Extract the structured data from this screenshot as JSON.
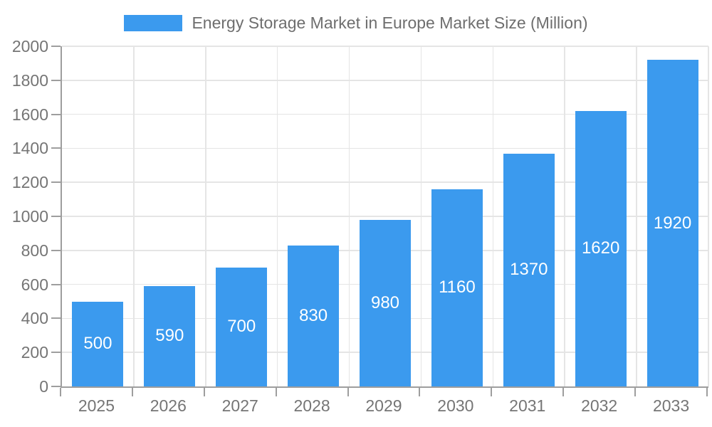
{
  "legend": {
    "items": [
      {
        "label": "Energy Storage Market in Europe Market Size (Million)",
        "swatch_color": "#3B9AEE"
      }
    ]
  },
  "colors": {
    "background": "#FFFFFF",
    "bar": "#3B9AEE",
    "grid_line": "#E5E5E5",
    "axis_line": "#9E9E9E",
    "axis_label": "#757575",
    "legend_text": "#6E6E6E",
    "value_label": "#FFFFFF"
  },
  "chart_data": {
    "type": "bar",
    "title": "Energy Storage Market in Europe Market Size (Million)",
    "categories": [
      "2025",
      "2026",
      "2027",
      "2028",
      "2029",
      "2030",
      "2031",
      "2032",
      "2033"
    ],
    "series": [
      {
        "name": "Energy Storage Market in Europe Market Size (Million)",
        "values": [
          500,
          590,
          700,
          830,
          980,
          1160,
          1370,
          1620,
          1920
        ]
      }
    ],
    "xlabel": "",
    "ylabel": "",
    "ylim": [
      0,
      2000
    ],
    "ytick_step": 200,
    "yticks": [
      0,
      200,
      400,
      600,
      800,
      1000,
      1200,
      1400,
      1600,
      1800,
      2000
    ],
    "grid": true,
    "legend_position": "top-center",
    "value_label_position": "inside-center"
  }
}
